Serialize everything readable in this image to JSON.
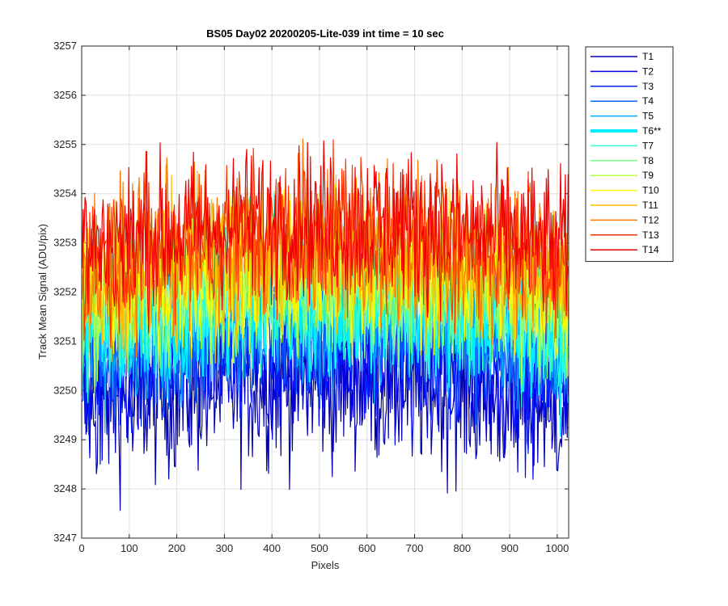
{
  "chart_data": {
    "type": "line",
    "title": "BS05 Day02 20200205-Lite-039 int time = 10 sec",
    "xlabel": "Pixels",
    "ylabel": "Track Mean Signal (ADU/pix)",
    "xlim": [
      0,
      1024
    ],
    "ylim": [
      3247,
      3257
    ],
    "xticks": [
      "0",
      "100",
      "200",
      "300",
      "400",
      "500",
      "600",
      "700",
      "800",
      "900",
      "1000"
    ],
    "yticks": [
      "3247",
      "3248",
      "3249",
      "3250",
      "3251",
      "3252",
      "3253",
      "3254",
      "3255",
      "3256",
      "3257"
    ],
    "grid": true,
    "legend_position": "outside-right",
    "series": [
      {
        "name": "T1",
        "color": "#0000af",
        "mean": 3249.6,
        "spread": 1.5,
        "width": 1.5
      },
      {
        "name": "T2",
        "color": "#0000e2",
        "mean": 3250.0,
        "spread": 1.4,
        "width": 1.5
      },
      {
        "name": "T3",
        "color": "#0022ff",
        "mean": 3250.4,
        "spread": 1.3,
        "width": 1.5
      },
      {
        "name": "T4",
        "color": "#0066ff",
        "mean": 3250.8,
        "spread": 1.3,
        "width": 1.5
      },
      {
        "name": "T5",
        "color": "#00aaff",
        "mean": 3251.0,
        "spread": 1.3,
        "width": 1.5
      },
      {
        "name": "T6**",
        "color": "#00eeff",
        "mean": 3251.2,
        "spread": 1.3,
        "width": 4
      },
      {
        "name": "T7",
        "color": "#33ffcc",
        "mean": 3251.4,
        "spread": 1.3,
        "width": 1.5
      },
      {
        "name": "T8",
        "color": "#77ff88",
        "mean": 3251.6,
        "spread": 1.3,
        "width": 1.5
      },
      {
        "name": "T9",
        "color": "#bbff44",
        "mean": 3251.8,
        "spread": 1.3,
        "width": 1.5
      },
      {
        "name": "T10",
        "color": "#ffff00",
        "mean": 3252.0,
        "spread": 1.4,
        "width": 1.5
      },
      {
        "name": "T11",
        "color": "#ffbb00",
        "mean": 3252.2,
        "spread": 1.4,
        "width": 1.5
      },
      {
        "name": "T12",
        "color": "#ff7700",
        "mean": 3252.5,
        "spread": 1.4,
        "width": 1.5
      },
      {
        "name": "T13",
        "color": "#ff3300",
        "mean": 3252.7,
        "spread": 1.4,
        "width": 1.5
      },
      {
        "name": "T14",
        "color": "#ee0000",
        "mean": 3252.9,
        "spread": 1.4,
        "width": 1.5
      }
    ]
  }
}
